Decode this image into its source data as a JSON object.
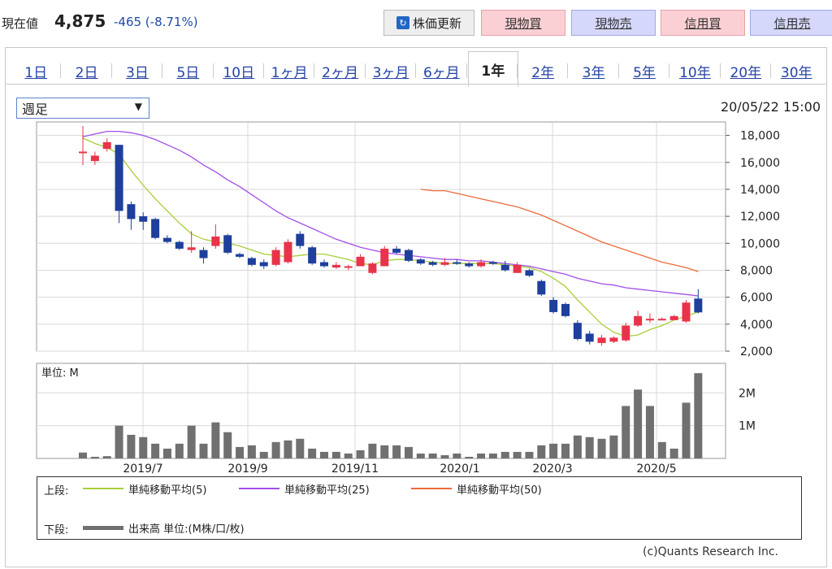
{
  "quote": {
    "label": "現在値",
    "value": "4,875",
    "change": "-465 (-8.71%)",
    "refresh_label": "株価更新",
    "buttons": [
      "現物買",
      "現物売",
      "信用買",
      "信用売"
    ]
  },
  "tabs": [
    "1日",
    "2日",
    "3日",
    "5日",
    "10日",
    "1ヶ月",
    "2ヶ月",
    "3ヶ月",
    "6ヶ月",
    "1年",
    "2年",
    "3年",
    "5年",
    "10年",
    "20年",
    "30年"
  ],
  "active_tab": "1年",
  "period_select": "週足",
  "timestamp": "20/05/22 15:00",
  "legend": {
    "upper_label": "上段:",
    "lower_label": "下段:",
    "ma5": "単純移動平均(5)",
    "ma25": "単純移動平均(25)",
    "ma50": "単純移動平均(50)",
    "volume": "出来高 単位:(M株/口/枚)"
  },
  "credit": "(c)Quants Research Inc.",
  "colors": {
    "up": "#e8334a",
    "down": "#1e3f9c",
    "ma5": "#a8cf38",
    "ma25": "#a24ee8",
    "ma50": "#ec6a3a",
    "volume": "#707070"
  },
  "chart_data": [
    {
      "type": "candlestick",
      "title": "",
      "ylim": [
        2000,
        19000
      ],
      "yticks": [
        2000,
        4000,
        6000,
        8000,
        10000,
        12000,
        14000,
        16000,
        18000
      ],
      "ytick_labels": [
        "2,000",
        "4,000",
        "6,000",
        "8,000",
        "10,000",
        "12,000",
        "14,000",
        "16,000",
        "18,000"
      ],
      "grid": true,
      "candles": [
        {
          "o": 16800,
          "h": 18700,
          "l": 15800,
          "c": 16800
        },
        {
          "o": 16100,
          "h": 16800,
          "l": 15800,
          "c": 16500
        },
        {
          "o": 17000,
          "h": 17800,
          "l": 16800,
          "c": 17500
        },
        {
          "o": 17300,
          "h": 17300,
          "l": 11500,
          "c": 12400
        },
        {
          "o": 12900,
          "h": 13100,
          "l": 11000,
          "c": 11800
        },
        {
          "o": 12000,
          "h": 12300,
          "l": 11000,
          "c": 11600
        },
        {
          "o": 11800,
          "h": 11900,
          "l": 10300,
          "c": 10400
        },
        {
          "o": 10400,
          "h": 10600,
          "l": 10000,
          "c": 10100
        },
        {
          "o": 10100,
          "h": 10200,
          "l": 9500,
          "c": 9600
        },
        {
          "o": 9500,
          "h": 10900,
          "l": 9300,
          "c": 9700
        },
        {
          "o": 9500,
          "h": 9700,
          "l": 8500,
          "c": 8900
        },
        {
          "o": 9800,
          "h": 11400,
          "l": 9600,
          "c": 10500
        },
        {
          "o": 10600,
          "h": 10700,
          "l": 9200,
          "c": 9300
        },
        {
          "o": 9200,
          "h": 9300,
          "l": 8900,
          "c": 9000
        },
        {
          "o": 8900,
          "h": 9000,
          "l": 8300,
          "c": 8400
        },
        {
          "o": 8600,
          "h": 8800,
          "l": 8100,
          "c": 8300
        },
        {
          "o": 8400,
          "h": 9700,
          "l": 8300,
          "c": 9500
        },
        {
          "o": 8600,
          "h": 10300,
          "l": 8500,
          "c": 10100
        },
        {
          "o": 10700,
          "h": 10900,
          "l": 9600,
          "c": 9800
        },
        {
          "o": 9700,
          "h": 9800,
          "l": 8400,
          "c": 8500
        },
        {
          "o": 8600,
          "h": 8800,
          "l": 8200,
          "c": 8300
        },
        {
          "o": 8200,
          "h": 8600,
          "l": 8100,
          "c": 8400
        },
        {
          "o": 8200,
          "h": 8400,
          "l": 8000,
          "c": 8300
        },
        {
          "o": 8300,
          "h": 9200,
          "l": 8300,
          "c": 9000
        },
        {
          "o": 7800,
          "h": 8600,
          "l": 7700,
          "c": 8500
        },
        {
          "o": 8300,
          "h": 9800,
          "l": 8300,
          "c": 9600
        },
        {
          "o": 9600,
          "h": 9800,
          "l": 9200,
          "c": 9300
        },
        {
          "o": 9500,
          "h": 9600,
          "l": 8600,
          "c": 8700
        },
        {
          "o": 8800,
          "h": 8900,
          "l": 8400,
          "c": 8500
        },
        {
          "o": 8600,
          "h": 8700,
          "l": 8300,
          "c": 8400
        },
        {
          "o": 8400,
          "h": 8900,
          "l": 8300,
          "c": 8600
        },
        {
          "o": 8600,
          "h": 8800,
          "l": 8400,
          "c": 8500
        },
        {
          "o": 8500,
          "h": 8600,
          "l": 8200,
          "c": 8300
        },
        {
          "o": 8300,
          "h": 8800,
          "l": 8200,
          "c": 8600
        },
        {
          "o": 8600,
          "h": 8700,
          "l": 8400,
          "c": 8500
        },
        {
          "o": 8400,
          "h": 8700,
          "l": 7900,
          "c": 8000
        },
        {
          "o": 7800,
          "h": 8600,
          "l": 7800,
          "c": 8400
        },
        {
          "o": 8000,
          "h": 8100,
          "l": 7500,
          "c": 7600
        },
        {
          "o": 7200,
          "h": 7300,
          "l": 6100,
          "c": 6200
        },
        {
          "o": 5800,
          "h": 6000,
          "l": 4800,
          "c": 4900
        },
        {
          "o": 5500,
          "h": 5600,
          "l": 4500,
          "c": 4600
        },
        {
          "o": 4100,
          "h": 4300,
          "l": 2800,
          "c": 2900
        },
        {
          "o": 3300,
          "h": 3500,
          "l": 2500,
          "c": 2700
        },
        {
          "o": 2600,
          "h": 3200,
          "l": 2400,
          "c": 3000
        },
        {
          "o": 2700,
          "h": 3100,
          "l": 2600,
          "c": 3000
        },
        {
          "o": 2800,
          "h": 4100,
          "l": 2700,
          "c": 3900
        },
        {
          "o": 3900,
          "h": 5000,
          "l": 3800,
          "c": 4600
        },
        {
          "o": 4300,
          "h": 4800,
          "l": 4100,
          "c": 4400
        },
        {
          "o": 4400,
          "h": 4500,
          "l": 4300,
          "c": 4400
        },
        {
          "o": 4300,
          "h": 4700,
          "l": 4300,
          "c": 4600
        },
        {
          "o": 4200,
          "h": 5800,
          "l": 4100,
          "c": 5600
        },
        {
          "o": 5900,
          "h": 6600,
          "l": 4800,
          "c": 4875
        }
      ],
      "moving_averages": [
        {
          "name": "単純移動平均(5)",
          "start_index": 0,
          "values": [
            17800,
            17400,
            17100,
            16600,
            15400,
            14300,
            13300,
            12400,
            11500,
            10700,
            10300,
            10100,
            10000,
            9800,
            9500,
            9200,
            9100,
            9000,
            9100,
            9200,
            9200,
            9000,
            8800,
            8500,
            8400,
            8700,
            8800,
            8800,
            8700,
            8600,
            8500,
            8500,
            8500,
            8500,
            8500,
            8400,
            8300,
            8200,
            7900,
            7400,
            6800,
            5800,
            4900,
            4000,
            3400,
            3100,
            3200,
            3600,
            3900,
            4300,
            4600,
            4900
          ]
        },
        {
          "name": "単純移動平均(25)",
          "start_index": 0,
          "values": [
            17900,
            18100,
            18300,
            18300,
            18200,
            18000,
            17700,
            17300,
            16900,
            16400,
            15800,
            15300,
            14700,
            14200,
            13600,
            13000,
            12400,
            11900,
            11500,
            11100,
            10700,
            10300,
            10000,
            9700,
            9500,
            9300,
            9200,
            9100,
            9000,
            8900,
            8800,
            8800,
            8700,
            8700,
            8600,
            8500,
            8400,
            8300,
            8100,
            7900,
            7700,
            7400,
            7200,
            7000,
            6900,
            6700,
            6600,
            6500,
            6400,
            6300,
            6200,
            6100
          ]
        },
        {
          "name": "単純移動平均(50)",
          "start_index": 28,
          "values": [
            14000,
            13900,
            13900,
            13700,
            13500,
            13300,
            13100,
            12900,
            12700,
            12400,
            12100,
            11700,
            11300,
            10900,
            10500,
            10100,
            9800,
            9500,
            9200,
            8900,
            8600,
            8400,
            8200,
            7900
          ]
        }
      ]
    },
    {
      "type": "bar",
      "title": "単位: M",
      "ylim": [
        0,
        2.9
      ],
      "yticks": [
        1,
        2
      ],
      "ytick_labels": [
        "1M",
        "2M"
      ],
      "x_tick_labels": [
        "2019/7",
        "2019/9",
        "2019/11",
        "2020/1",
        "2020/3",
        "2020/5"
      ],
      "values": [
        0.18,
        0.05,
        0.07,
        1.0,
        0.72,
        0.65,
        0.45,
        0.3,
        0.45,
        1.0,
        0.45,
        1.1,
        0.8,
        0.35,
        0.4,
        0.2,
        0.5,
        0.55,
        0.6,
        0.3,
        0.2,
        0.2,
        0.15,
        0.25,
        0.45,
        0.4,
        0.4,
        0.35,
        0.15,
        0.15,
        0.1,
        0.15,
        0.05,
        0.15,
        0.15,
        0.2,
        0.2,
        0.2,
        0.4,
        0.45,
        0.45,
        0.7,
        0.65,
        0.6,
        0.7,
        1.6,
        2.1,
        1.6,
        0.5,
        0.3,
        1.7,
        2.6
      ]
    }
  ]
}
